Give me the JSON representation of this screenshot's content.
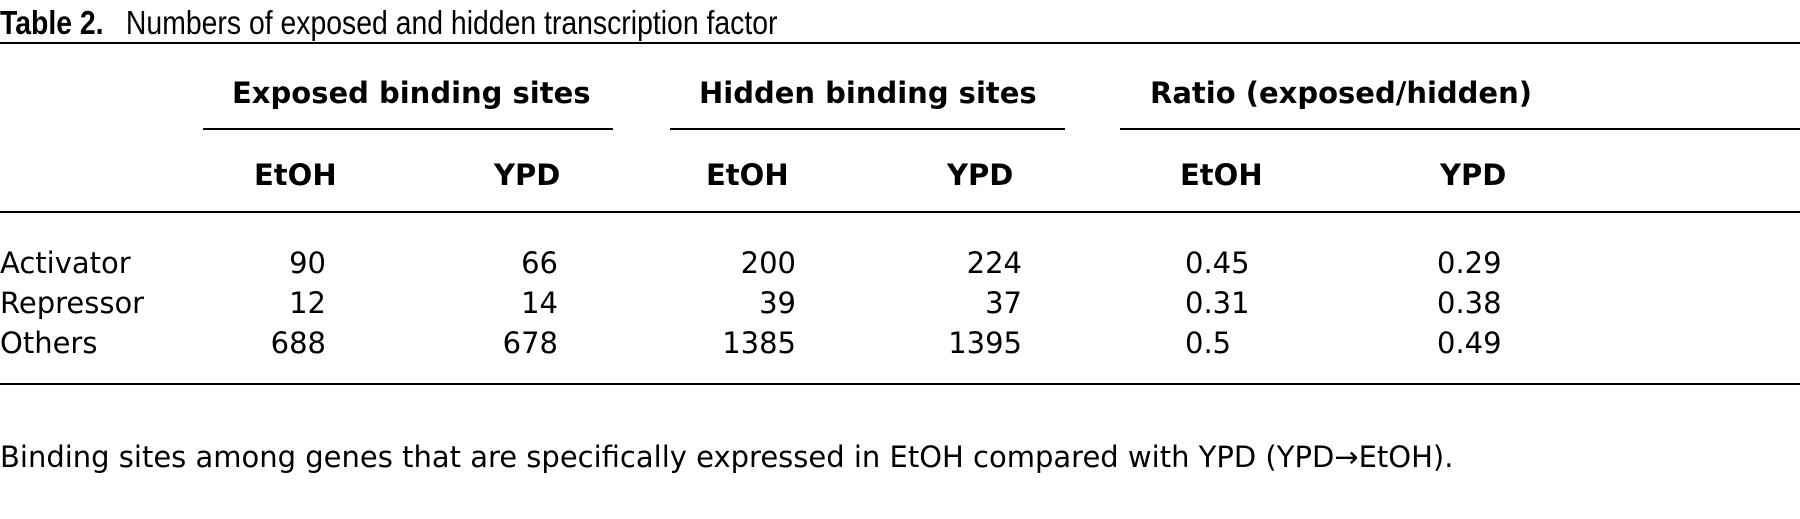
{
  "table": {
    "label": "Table 2.",
    "title": "Numbers of exposed and hidden transcription factor",
    "groups": [
      "Exposed binding sites",
      "Hidden binding sites",
      "Ratio (exposed/hidden)"
    ],
    "subheaders": [
      "EtOH",
      "YPD",
      "EtOH",
      "YPD",
      "EtOH",
      "YPD"
    ],
    "rows": [
      {
        "label": "Activator",
        "values": [
          "90",
          "66",
          "200",
          "224",
          "0.45",
          "0.29"
        ]
      },
      {
        "label": "Repressor",
        "values": [
          "12",
          "14",
          "39",
          "37",
          "0.31",
          "0.38"
        ]
      },
      {
        "label": "Others",
        "values": [
          "688",
          "678",
          "1385",
          "1395",
          "0.5",
          "0.49"
        ]
      }
    ],
    "footnote": "Binding sites among genes that are specifically expressed in EtOH compared with YPD (YPD→EtOH)."
  }
}
